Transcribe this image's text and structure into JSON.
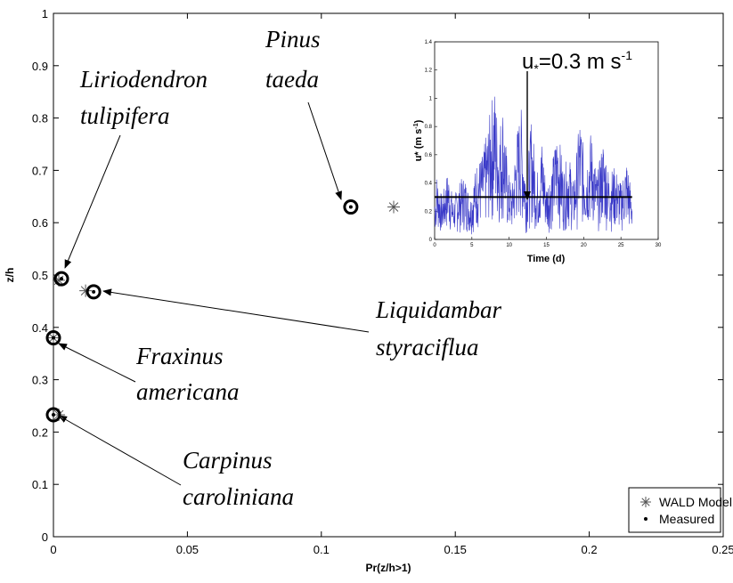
{
  "chart_data": [
    {
      "type": "scatter",
      "xlabel": "Pr(z/h>1)",
      "ylabel": "z/h",
      "xlim": [
        0,
        0.25
      ],
      "ylim": [
        0,
        1
      ],
      "xticks": [
        0,
        0.05,
        0.1,
        0.15,
        0.2,
        0.25
      ],
      "xtick_labels": [
        "0",
        "0.05",
        "0.1",
        "0.15",
        "0.2",
        "0.25"
      ],
      "yticks": [
        0,
        0.1,
        0.2,
        0.3,
        0.4,
        0.5,
        0.6,
        0.7,
        0.8,
        0.9,
        1
      ],
      "ytick_labels": [
        "0",
        "0.1",
        "0.2",
        "0.3",
        "0.4",
        "0.5",
        "0.6",
        "0.7",
        "0.8",
        "0.9",
        "1"
      ],
      "grid": false,
      "legend_position": "bottom-right",
      "series": [
        {
          "name": "WALD Model",
          "marker": "asterisk",
          "color": "#555555",
          "points": [
            {
              "x": 0.127,
              "y": 0.63
            },
            {
              "x": 0.002,
              "y": 0.49
            },
            {
              "x": 0.012,
              "y": 0.47
            },
            {
              "x": 0.0,
              "y": 0.38
            },
            {
              "x": 0.002,
              "y": 0.233
            }
          ]
        },
        {
          "name": "Measured",
          "marker": "dot",
          "color": "#000000",
          "points": [
            {
              "x": 0.111,
              "y": 0.63
            },
            {
              "x": 0.003,
              "y": 0.493
            },
            {
              "x": 0.015,
              "y": 0.468
            },
            {
              "x": 0.0,
              "y": 0.38
            },
            {
              "x": 0.0,
              "y": 0.233
            }
          ]
        }
      ],
      "annotations": [
        {
          "lines": [
            "Pinus",
            "taeda"
          ],
          "points_to": {
            "x": 0.111,
            "y": 0.63
          }
        },
        {
          "lines": [
            "Liriodendron",
            "tulipifera"
          ],
          "points_to": {
            "x": 0.003,
            "y": 0.493
          }
        },
        {
          "lines": [
            "Liquidambar",
            "styraciflua"
          ],
          "points_to": {
            "x": 0.015,
            "y": 0.468
          }
        },
        {
          "lines": [
            "Fraxinus",
            "americana"
          ],
          "points_to": {
            "x": 0.0,
            "y": 0.38
          }
        },
        {
          "lines": [
            "Carpinus",
            "caroliniana"
          ],
          "points_to": {
            "x": 0.0,
            "y": 0.233
          }
        }
      ]
    },
    {
      "type": "line",
      "role": "inset",
      "xlabel": "Time (d)",
      "ylabel_main": "u* (m s",
      "ylabel_sup": "-1",
      "ylabel_end": ")",
      "xlim": [
        0,
        30
      ],
      "ylim": [
        0,
        1.4
      ],
      "xticks": [
        0,
        5,
        10,
        15,
        20,
        25,
        30
      ],
      "xtick_labels": [
        "0",
        "5",
        "10",
        "15",
        "20",
        "25",
        "30"
      ],
      "yticks": [
        0,
        0.2,
        0.4,
        0.6,
        0.8,
        1.0,
        1.2,
        1.4
      ],
      "ytick_labels": [
        "0",
        "0.2",
        "0.4",
        "0.6",
        "0.8",
        "1",
        "1.2",
        "1.4"
      ],
      "series_color": "#3a3ac8",
      "time_range": [
        0,
        26.5
      ],
      "peaks": [
        {
          "t": 0.2,
          "v": 0.48
        },
        {
          "t": 1.0,
          "v": 0.3
        },
        {
          "t": 1.8,
          "v": 0.5
        },
        {
          "t": 2.5,
          "v": 0.28
        },
        {
          "t": 3.2,
          "v": 0.4
        },
        {
          "t": 4.0,
          "v": 0.46
        },
        {
          "t": 4.8,
          "v": 0.3
        },
        {
          "t": 5.6,
          "v": 0.55
        },
        {
          "t": 6.4,
          "v": 0.6
        },
        {
          "t": 7.2,
          "v": 0.82
        },
        {
          "t": 8.0,
          "v": 1.12
        },
        {
          "t": 8.6,
          "v": 0.78
        },
        {
          "t": 9.2,
          "v": 0.98
        },
        {
          "t": 9.8,
          "v": 0.5
        },
        {
          "t": 10.4,
          "v": 0.38
        },
        {
          "t": 11.0,
          "v": 0.76
        },
        {
          "t": 11.6,
          "v": 0.95
        },
        {
          "t": 12.3,
          "v": 0.42
        },
        {
          "t": 13.0,
          "v": 0.88
        },
        {
          "t": 13.7,
          "v": 0.45
        },
        {
          "t": 14.4,
          "v": 0.72
        },
        {
          "t": 15.0,
          "v": 0.4
        },
        {
          "t": 15.8,
          "v": 0.55
        },
        {
          "t": 16.5,
          "v": 0.82
        },
        {
          "t": 17.3,
          "v": 0.5
        },
        {
          "t": 18.0,
          "v": 0.62
        },
        {
          "t": 18.7,
          "v": 0.4
        },
        {
          "t": 19.5,
          "v": 0.9
        },
        {
          "t": 20.2,
          "v": 0.55
        },
        {
          "t": 21.0,
          "v": 0.78
        },
        {
          "t": 21.8,
          "v": 0.45
        },
        {
          "t": 22.6,
          "v": 0.72
        },
        {
          "t": 23.4,
          "v": 0.48
        },
        {
          "t": 24.2,
          "v": 0.52
        },
        {
          "t": 25.0,
          "v": 0.4
        },
        {
          "t": 25.8,
          "v": 0.58
        },
        {
          "t": 26.4,
          "v": 0.35
        }
      ],
      "threshold": {
        "value": 0.3,
        "x_range": [
          0,
          26.5
        ]
      },
      "annotation": {
        "prefix": "u",
        "sub": "*",
        "middle": "=0.3 m s",
        "sup": "-1",
        "points_to": {
          "x": 11.0,
          "y": 0.3
        }
      }
    }
  ]
}
